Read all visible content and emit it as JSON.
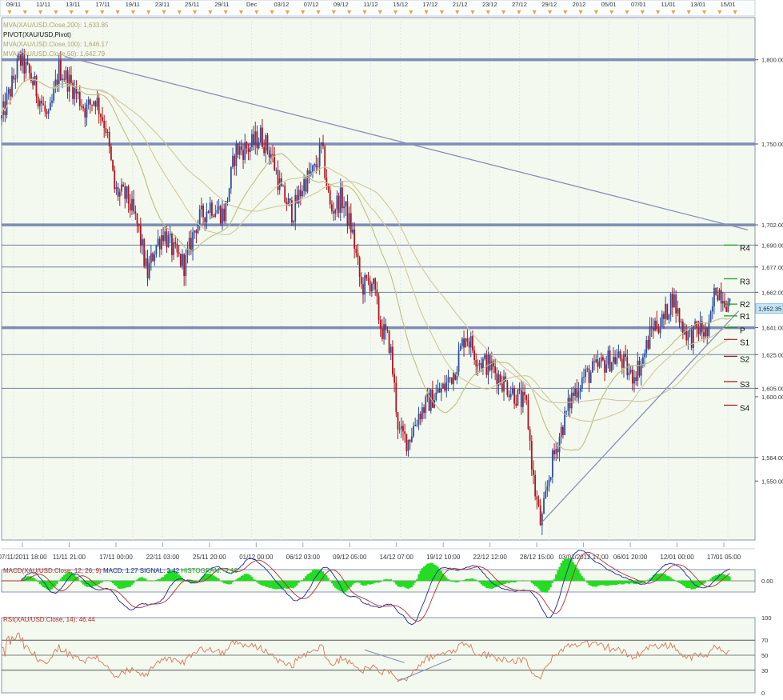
{
  "colors": {
    "background": "#ffffff",
    "panel_bg": "#f3f9ee",
    "grid": "#e1e6ef",
    "hline": "#6f7fa3",
    "hline_thick": "#7d8bb8",
    "trendline": "#8a90b8",
    "bull_candle": "#2a4fa3",
    "bear_candle": "#b0141e",
    "mva200": "#cfc6a4",
    "mva100": "#d5c79a",
    "mva50": "#bdbf82",
    "price_tag": "#c6e6f5",
    "pivot_green": "#1c9c1c",
    "pivot_red": "#9c1c1c",
    "macd_hist": "#22dd22",
    "macd_line": "#1b2a9c",
    "signal_line": "#b03030",
    "rsi_line": "#d4785a",
    "marker": "#e6a640"
  },
  "legend": {
    "mva200": "MVA(XAU/USD.Close,200): 1,633.85",
    "pivot": "PIVOT(XAU/USD,Pivot)",
    "mva100": "MVA(XAU/USD.Close,100): 1,646.17",
    "mva50": "MVA(XAU/USD.Close,50): 1,642.79"
  },
  "macd_label": {
    "name": "MACD(XAU/USD.Close, 12, 26, 9)",
    "macd": "MACD: 1.27",
    "signal": "SIGNAL: 3.42",
    "histogram": "HISTOGRAM: -2.15"
  },
  "rsi_label": "RSI(XAU/USD.Close, 14): 46.44",
  "chart_data": {
    "type": "candlestick",
    "instrument": "XAU/USD",
    "ylim": [
      1515,
      1825
    ],
    "y_axis_ticks": [
      "1,800.00",
      "1,750.00",
      "1,702.00",
      "1,690.00",
      "1,677.00",
      "1,662.00",
      "1,641.00",
      "1,625.00",
      "1,605.00",
      "1,600.00",
      "1,564.00",
      "1,550.00"
    ],
    "current_price": "1,652.35",
    "horizontal_levels": [
      {
        "value": 1800,
        "thick": true
      },
      {
        "value": 1750,
        "thick": true
      },
      {
        "value": 1702,
        "thick": true
      },
      {
        "value": 1690,
        "thick": false
      },
      {
        "value": 1677,
        "thick": false
      },
      {
        "value": 1662,
        "thick": false
      },
      {
        "value": 1641,
        "thick": true
      },
      {
        "value": 1625,
        "thick": false
      },
      {
        "value": 1605,
        "thick": false
      },
      {
        "value": 1564,
        "thick": false
      }
    ],
    "pivot_levels": [
      {
        "label": "R4",
        "value": 1690,
        "color": "green"
      },
      {
        "label": "R3",
        "value": 1670,
        "color": "green"
      },
      {
        "label": "R2",
        "value": 1655,
        "color": "green"
      },
      {
        "label": "R1",
        "value": 1648,
        "color": "green"
      },
      {
        "label": "P",
        "value": 1641,
        "color": "green"
      },
      {
        "label": "S1",
        "value": 1634,
        "color": "red"
      },
      {
        "label": "S2",
        "value": 1624,
        "color": "red"
      },
      {
        "label": "S3",
        "value": 1609,
        "color": "red"
      },
      {
        "label": "S4",
        "value": 1595,
        "color": "red"
      }
    ],
    "top_axis_labels": [
      "09/11",
      "11/11",
      "13/11",
      "17/11",
      "19/11",
      "23/11",
      "25/11",
      "29/11",
      "Dec",
      "03/12",
      "07/12",
      "09/12",
      "11/12",
      "15/12",
      "17/12",
      "21/12",
      "23/12",
      "27/12",
      "29/12",
      "2012",
      "05/01",
      "07/01",
      "11/01",
      "13/01",
      "15/01"
    ],
    "bottom_axis_labels": [
      "07/11/2011 18:00",
      "11/11 21:00",
      "17/11 00:00",
      "22/11 03:00",
      "25/11 20:00",
      "01/12 00:00",
      "06/12 03:00",
      "09/12 05:00",
      "14/12 07:00",
      "19/12 10:00",
      "22/12 12:00",
      "28/12 15:00",
      "03/01/2012 17:00",
      "06/01 20:00",
      "12/01 00:00",
      "17/01 05:00"
    ],
    "price_path": [
      {
        "t": 0.0,
        "v": 1765
      },
      {
        "t": 1.0,
        "v": 1800
      },
      {
        "t": 1.6,
        "v": 1790
      },
      {
        "t": 2.2,
        "v": 1775
      },
      {
        "t": 2.6,
        "v": 1763
      },
      {
        "t": 3.2,
        "v": 1795
      },
      {
        "t": 4.0,
        "v": 1783
      },
      {
        "t": 4.7,
        "v": 1770
      },
      {
        "t": 5.2,
        "v": 1778
      },
      {
        "t": 5.8,
        "v": 1760
      },
      {
        "t": 6.3,
        "v": 1722
      },
      {
        "t": 7.0,
        "v": 1718
      },
      {
        "t": 7.6,
        "v": 1700
      },
      {
        "t": 8.1,
        "v": 1672
      },
      {
        "t": 8.5,
        "v": 1688
      },
      {
        "t": 9.0,
        "v": 1698
      },
      {
        "t": 9.6,
        "v": 1685
      },
      {
        "t": 10.2,
        "v": 1678
      },
      {
        "t": 10.8,
        "v": 1702
      },
      {
        "t": 11.6,
        "v": 1714
      },
      {
        "t": 12.4,
        "v": 1708
      },
      {
        "t": 13.0,
        "v": 1746
      },
      {
        "t": 13.8,
        "v": 1748
      },
      {
        "t": 14.4,
        "v": 1755
      },
      {
        "t": 15.0,
        "v": 1744
      },
      {
        "t": 15.6,
        "v": 1720
      },
      {
        "t": 16.2,
        "v": 1709
      },
      {
        "t": 16.8,
        "v": 1727
      },
      {
        "t": 17.4,
        "v": 1734
      },
      {
        "t": 17.8,
        "v": 1748
      },
      {
        "t": 18.3,
        "v": 1710
      },
      {
        "t": 18.9,
        "v": 1718
      },
      {
        "t": 19.5,
        "v": 1698
      },
      {
        "t": 20.0,
        "v": 1665
      },
      {
        "t": 20.6,
        "v": 1669
      },
      {
        "t": 21.1,
        "v": 1641
      },
      {
        "t": 21.6,
        "v": 1631
      },
      {
        "t": 22.1,
        "v": 1578
      },
      {
        "t": 22.6,
        "v": 1574
      },
      {
        "t": 23.2,
        "v": 1590
      },
      {
        "t": 24.0,
        "v": 1600
      },
      {
        "t": 24.6,
        "v": 1605
      },
      {
        "t": 25.2,
        "v": 1616
      },
      {
        "t": 25.8,
        "v": 1638
      },
      {
        "t": 26.5,
        "v": 1622
      },
      {
        "t": 27.2,
        "v": 1618
      },
      {
        "t": 27.8,
        "v": 1610
      },
      {
        "t": 28.5,
        "v": 1602
      },
      {
        "t": 29.2,
        "v": 1594
      },
      {
        "t": 29.6,
        "v": 1548
      },
      {
        "t": 30.0,
        "v": 1523
      },
      {
        "t": 30.5,
        "v": 1556
      },
      {
        "t": 31.0,
        "v": 1576
      },
      {
        "t": 31.7,
        "v": 1600
      },
      {
        "t": 32.3,
        "v": 1611
      },
      {
        "t": 33.0,
        "v": 1616
      },
      {
        "t": 33.8,
        "v": 1622
      },
      {
        "t": 34.4,
        "v": 1623
      },
      {
        "t": 35.0,
        "v": 1612
      },
      {
        "t": 35.6,
        "v": 1620
      },
      {
        "t": 36.2,
        "v": 1642
      },
      {
        "t": 36.8,
        "v": 1645
      },
      {
        "t": 37.3,
        "v": 1660
      },
      {
        "t": 37.8,
        "v": 1643
      },
      {
        "t": 38.3,
        "v": 1635
      },
      {
        "t": 38.8,
        "v": 1641
      },
      {
        "t": 39.3,
        "v": 1636
      },
      {
        "t": 39.7,
        "v": 1665
      },
      {
        "t": 40.2,
        "v": 1660
      },
      {
        "t": 40.5,
        "v": 1652
      }
    ],
    "time_extent": [
      0,
      41.5
    ],
    "trendlines": [
      {
        "t1": 3.5,
        "v1": 1802,
        "t2": 41.5,
        "v2": 1699
      },
      {
        "t1": 30.0,
        "v1": 1525,
        "t2": 41.0,
        "v2": 1651
      }
    ],
    "macd": {
      "ylim": [
        -9,
        9
      ],
      "tick": "0.00",
      "last_macd": 1.27,
      "last_signal": 3.42,
      "last_histogram": -2.15
    },
    "rsi": {
      "ylim": [
        0,
        100
      ],
      "ticks": [
        "100",
        "70",
        "50",
        "30",
        "0"
      ],
      "levels": [
        70,
        50,
        30
      ],
      "last": 46.44
    }
  }
}
